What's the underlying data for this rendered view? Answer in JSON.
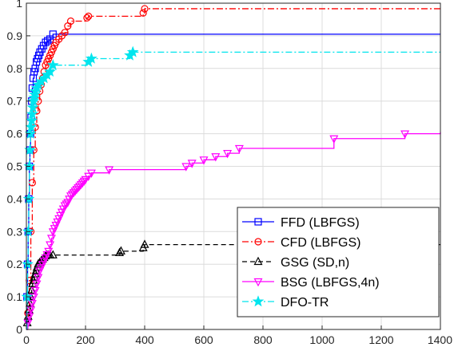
{
  "chart_data": {
    "type": "line",
    "title": "",
    "xlabel": "",
    "ylabel": "",
    "xlim": [
      0,
      1400
    ],
    "ylim": [
      0,
      1
    ],
    "xticks": [
      0,
      200,
      400,
      600,
      800,
      1000,
      1200,
      1400
    ],
    "yticks": [
      0,
      0.1,
      0.2,
      0.3,
      0.4,
      0.5,
      0.6,
      0.7,
      0.8,
      0.9,
      1
    ],
    "xtick_labels": [
      "0",
      "200",
      "400",
      "600",
      "800",
      "1000",
      "1200",
      "1400"
    ],
    "ytick_labels": [
      "0",
      "0.1",
      "0.2",
      "0.3",
      "0.4",
      "0.5",
      "0.6",
      "0.7",
      "0.8",
      "0.9",
      "1"
    ],
    "grid": true,
    "step": true,
    "legend_position": "bottom-right",
    "series": [
      {
        "name": "FFD (LBFGS)",
        "color": "#0000ff",
        "dash": "solid",
        "marker": "square",
        "x": [
          0,
          2,
          4,
          6,
          8,
          10,
          12,
          14,
          16,
          18,
          20,
          23,
          26,
          30,
          34,
          38,
          42,
          46,
          52,
          58,
          65,
          72,
          80,
          90,
          1400
        ],
        "y": [
          0,
          0.1,
          0.2,
          0.3,
          0.4,
          0.5,
          0.55,
          0.6,
          0.65,
          0.7,
          0.74,
          0.77,
          0.79,
          0.8,
          0.82,
          0.83,
          0.84,
          0.85,
          0.86,
          0.87,
          0.88,
          0.885,
          0.89,
          0.905,
          0.905
        ]
      },
      {
        "name": "CFD (LBFGS)",
        "color": "#ff0000",
        "dash": "dashdot",
        "marker": "circle",
        "x": [
          0,
          5,
          10,
          15,
          20,
          25,
          30,
          35,
          40,
          45,
          50,
          55,
          60,
          65,
          70,
          75,
          80,
          85,
          90,
          95,
          100,
          110,
          120,
          130,
          140,
          150,
          205,
          210,
          395,
          400,
          1400
        ],
        "y": [
          0,
          0.05,
          0.15,
          0.3,
          0.45,
          0.55,
          0.62,
          0.67,
          0.7,
          0.73,
          0.75,
          0.77,
          0.79,
          0.81,
          0.82,
          0.83,
          0.84,
          0.85,
          0.86,
          0.87,
          0.88,
          0.89,
          0.9,
          0.91,
          0.93,
          0.945,
          0.955,
          0.96,
          0.97,
          0.983,
          0.983
        ]
      },
      {
        "name": "GSG (SD,n)",
        "color": "#000000",
        "dash": "dashed",
        "marker": "triangle-up",
        "x": [
          0,
          3,
          6,
          9,
          12,
          15,
          18,
          21,
          24,
          27,
          30,
          33,
          36,
          40,
          45,
          50,
          55,
          60,
          65,
          70,
          75,
          80,
          90,
          315,
          320,
          395,
          400,
          1400
        ],
        "y": [
          0,
          0.02,
          0.04,
          0.06,
          0.08,
          0.1,
          0.12,
          0.14,
          0.15,
          0.16,
          0.17,
          0.18,
          0.19,
          0.2,
          0.205,
          0.21,
          0.215,
          0.22,
          0.225,
          0.228,
          0.228,
          0.228,
          0.228,
          0.235,
          0.24,
          0.25,
          0.26,
          0.26
        ]
      },
      {
        "name": "BSG (LBFGS,4n)",
        "color": "#ff00ff",
        "dash": "solid",
        "marker": "triangle-down",
        "x": [
          0,
          5,
          10,
          15,
          20,
          25,
          30,
          35,
          40,
          45,
          50,
          55,
          60,
          65,
          70,
          75,
          80,
          85,
          90,
          95,
          100,
          105,
          110,
          115,
          120,
          125,
          130,
          135,
          140,
          145,
          150,
          155,
          160,
          165,
          170,
          175,
          180,
          185,
          190,
          195,
          200,
          210,
          220,
          280,
          540,
          560,
          600,
          640,
          680,
          720,
          1040,
          1280,
          1400
        ],
        "y": [
          0,
          0.02,
          0.04,
          0.06,
          0.08,
          0.1,
          0.12,
          0.14,
          0.16,
          0.18,
          0.19,
          0.2,
          0.21,
          0.22,
          0.23,
          0.24,
          0.26,
          0.28,
          0.3,
          0.31,
          0.32,
          0.33,
          0.34,
          0.35,
          0.36,
          0.37,
          0.38,
          0.385,
          0.39,
          0.4,
          0.41,
          0.415,
          0.42,
          0.425,
          0.43,
          0.435,
          0.44,
          0.445,
          0.45,
          0.455,
          0.46,
          0.47,
          0.48,
          0.49,
          0.5,
          0.51,
          0.52,
          0.53,
          0.54,
          0.555,
          0.585,
          0.6,
          0.605
        ]
      },
      {
        "name": "DFO-TR",
        "color": "#00e5ee",
        "dash": "dashdot",
        "marker": "star",
        "x": [
          0,
          2,
          4,
          6,
          8,
          10,
          12,
          14,
          16,
          18,
          20,
          22,
          24,
          26,
          28,
          30,
          35,
          40,
          50,
          60,
          70,
          80,
          90,
          210,
          220,
          350,
          360,
          1400
        ],
        "y": [
          0,
          0.1,
          0.2,
          0.3,
          0.4,
          0.5,
          0.55,
          0.6,
          0.62,
          0.64,
          0.66,
          0.68,
          0.7,
          0.71,
          0.72,
          0.73,
          0.74,
          0.75,
          0.76,
          0.77,
          0.78,
          0.79,
          0.81,
          0.82,
          0.83,
          0.84,
          0.85,
          0.85
        ]
      }
    ]
  }
}
